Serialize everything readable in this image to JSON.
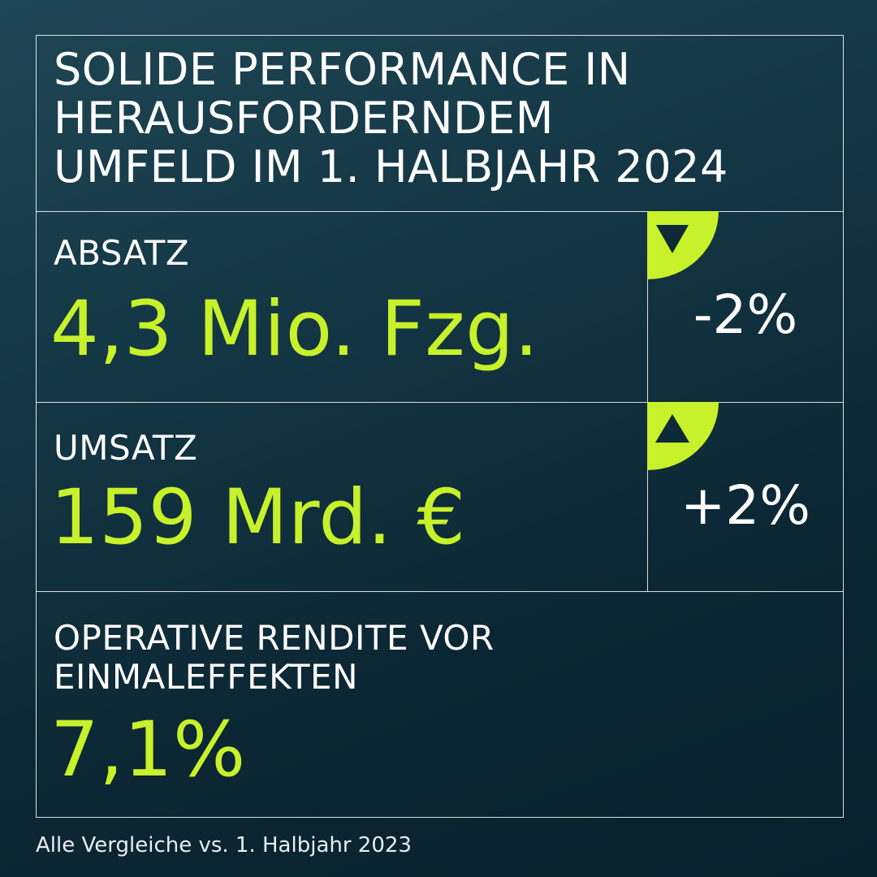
{
  "headline": "SOLIDE PERFORMANCE IN\nHERAUSFORDERNDEM\nUMFELD IM 1. HALBJAHR 2024",
  "kpis": {
    "absatz": {
      "label": "ABSATZ",
      "value": "4,3 Mio. Fzg.",
      "change": "-2%",
      "trend": "down",
      "trend_icon": "triangle-down-icon"
    },
    "umsatz": {
      "label": "UMSATZ",
      "value": "159 Mrd. €",
      "change": "+2%",
      "trend": "up",
      "trend_icon": "triangle-up-icon"
    },
    "rendite": {
      "label": "OPERATIVE RENDITE VOR\nEINMALEFFEKTEN",
      "value": "7,1%"
    }
  },
  "footnote": "Alle Vergleiche vs. 1. Halbjahr 2023",
  "colors": {
    "accent": "#c6f12b",
    "background_top": "#1f4654",
    "background_bottom": "#08202c",
    "text": "#ffffff",
    "border": "#ffffff"
  }
}
